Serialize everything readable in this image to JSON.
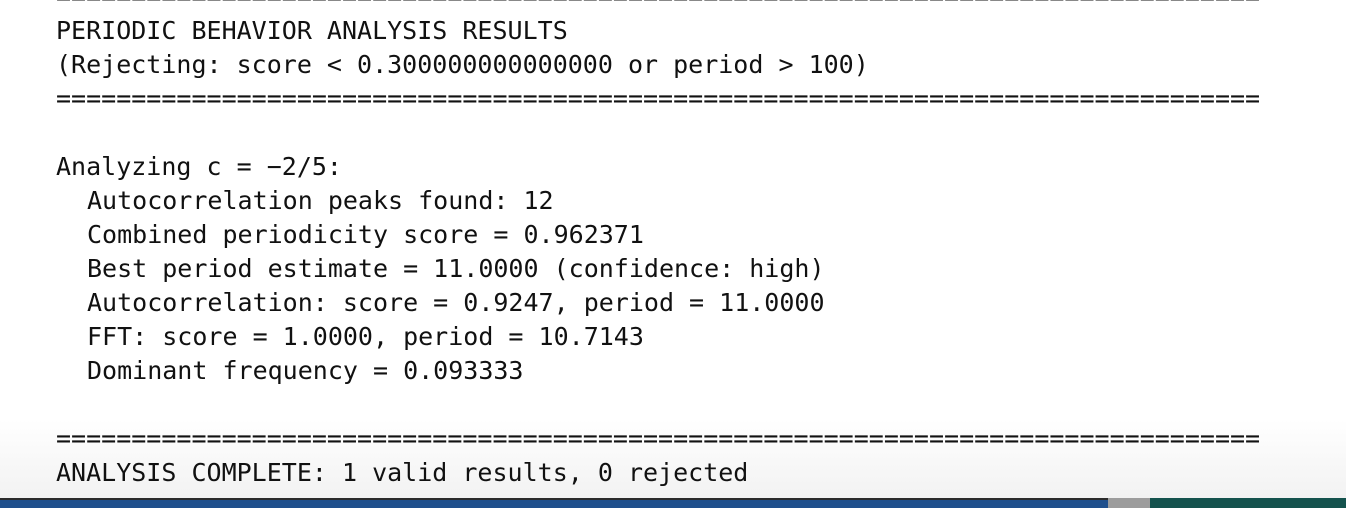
{
  "output": {
    "top_rule": "================================================================================",
    "header_title": "PERIODIC BEHAVIOR ANALYSIS RESULTS",
    "header_subtitle": "(Rejecting: score < 0.300000000000000 or period > 100)",
    "header_rule": "================================================================================",
    "analyzing_line": "Analyzing c = −2/5:",
    "details": [
      "Autocorrelation peaks found: 12",
      "Combined periodicity score = 0.962371",
      "Best period estimate = 11.0000 (confidence: high)",
      "Autocorrelation: score = 0.9247, period = 11.0000",
      "FFT: score = 1.0000, period = 10.7143",
      "Dominant frequency = 0.093333"
    ],
    "footer_rule": "================================================================================",
    "summary": "ANALYSIS COMPLETE: 1 valid results, 0 rejected"
  }
}
